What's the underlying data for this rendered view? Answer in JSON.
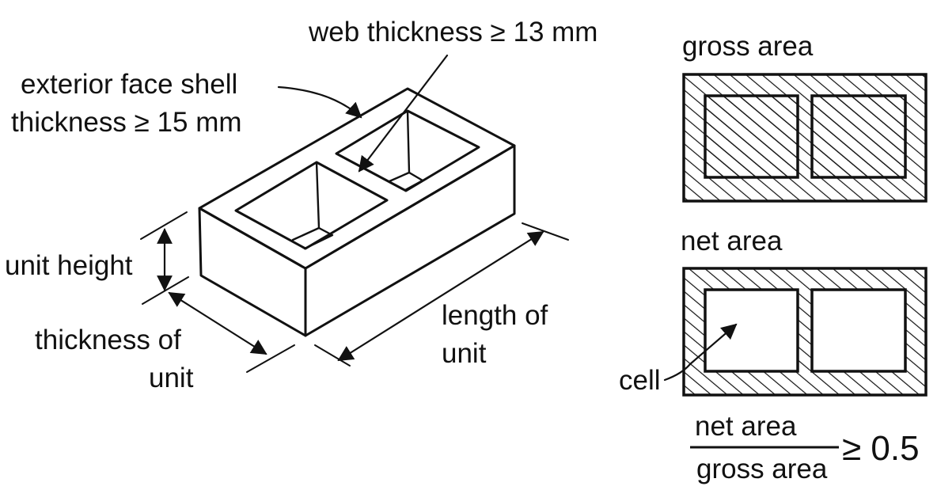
{
  "block_labels": {
    "web_thickness": "web thickness ≥ 13 mm",
    "face_shell_line1": "exterior face shell",
    "face_shell_line2": "thickness ≥ 15 mm",
    "unit_height": "unit height",
    "thickness_line1": "thickness of",
    "thickness_line2": "unit",
    "length_line1": "length of",
    "length_line2": "unit"
  },
  "panels": {
    "gross_title": "gross area",
    "net_title": "net area",
    "cell_label": "cell"
  },
  "ratio": {
    "numerator": "net area",
    "denominator": "gross area",
    "relation": "≥ 0.5"
  },
  "colors": {
    "ink": "#111111",
    "background": "#ffffff"
  }
}
